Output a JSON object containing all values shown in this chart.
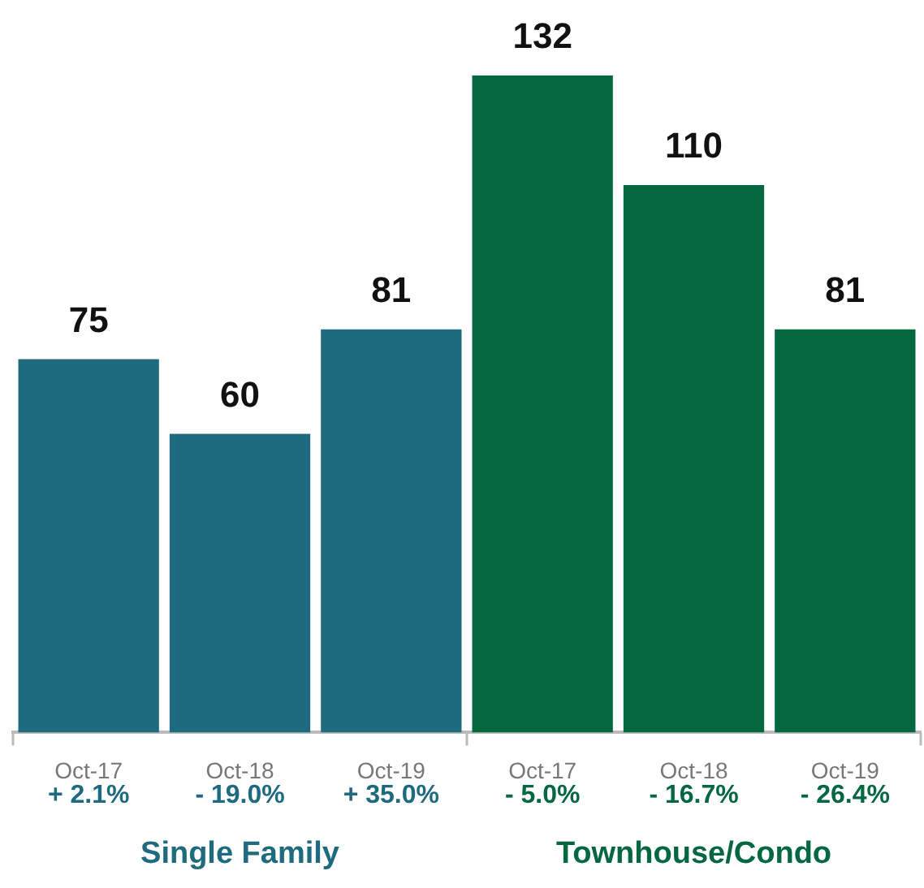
{
  "chart_data": {
    "type": "bar",
    "categories": [
      "Oct-17",
      "Oct-18",
      "Oct-19",
      "Oct-17",
      "Oct-18",
      "Oct-19"
    ],
    "series": [
      {
        "name": "Single Family",
        "color": "#1e6a7f",
        "values": [
          75,
          60,
          81,
          null,
          null,
          null
        ]
      },
      {
        "name": "Townhouse/Condo",
        "color": "#03673f",
        "values": [
          null,
          null,
          null,
          132,
          110,
          81
        ]
      }
    ],
    "annotations": [
      "+ 2.1%",
      "- 19.0%",
      "+ 35.0%",
      "- 5.0%",
      "- 16.7%",
      "- 26.4%"
    ],
    "data_labels": true,
    "tick_labels": "x",
    "legend": false
  }
}
